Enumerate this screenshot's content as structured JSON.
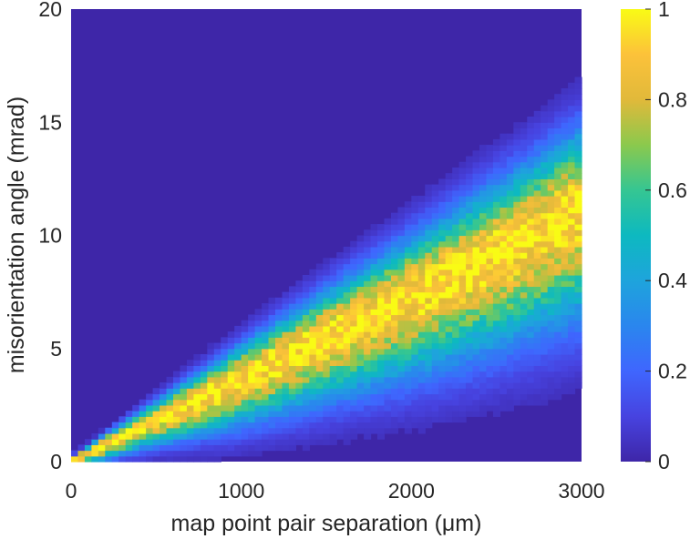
{
  "chart_data": {
    "type": "heatmap",
    "title": "",
    "xlabel": "map point pair separation (μm)",
    "ylabel": "misorientation angle (mrad)",
    "xlim": [
      0,
      3000
    ],
    "ylim": [
      0,
      20
    ],
    "x_ticks": [
      "0",
      "1000",
      "2000",
      "3000"
    ],
    "y_ticks": [
      "0",
      "5",
      "10",
      "15",
      "20"
    ],
    "colorbar": {
      "colormap": "parula",
      "range": [
        0,
        1
      ],
      "ticks": [
        "0",
        "0.2",
        "0.4",
        "0.6",
        "0.8",
        "1"
      ]
    },
    "background_color": "#3e26a8",
    "grid": false,
    "ridge": {
      "description_points": [
        {
          "x": 0,
          "peak_angle": 0.0,
          "half_width": 0.3
        },
        {
          "x": 500,
          "peak_angle": 1.9,
          "half_width": 1.2
        },
        {
          "x": 1000,
          "peak_angle": 3.7,
          "half_width": 2.2
        },
        {
          "x": 1500,
          "peak_angle": 5.6,
          "half_width": 3.0
        },
        {
          "x": 2000,
          "peak_angle": 7.4,
          "half_width": 3.8
        },
        {
          "x": 2500,
          "peak_angle": 9.3,
          "half_width": 4.5
        },
        {
          "x": 3000,
          "peak_angle": 11.3,
          "half_width": 5.1
        }
      ]
    },
    "bins": {
      "x": 75,
      "y": 80
    }
  }
}
